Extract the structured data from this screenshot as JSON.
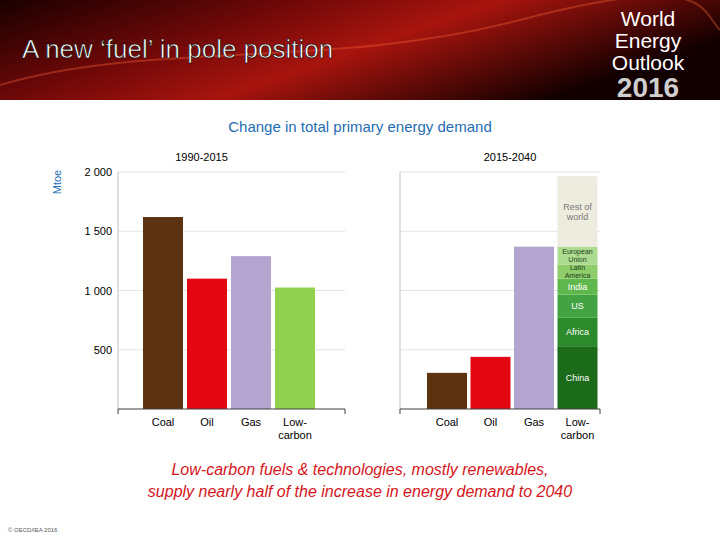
{
  "header": {
    "title": "A new ‘fuel’ in pole position",
    "logo": [
      "World",
      "Energy",
      "Outlook",
      "2016"
    ]
  },
  "heading": "Change in total primary energy demand",
  "chart_data": [
    {
      "type": "bar",
      "title": "1990-2015",
      "y_label": "Mtoe",
      "categories": [
        "Coal",
        "Oil",
        "Gas",
        "Low-carbon"
      ],
      "values": [
        1620,
        1100,
        1290,
        1025
      ],
      "colors": [
        "#5c3311",
        "#e30613",
        "#b3a5cf",
        "#92d050"
      ],
      "ylim": [
        0,
        2000
      ],
      "yticks": [
        500,
        {
          "value": 1000,
          "label": "1 000"
        },
        {
          "value": 1500,
          "label": "1 500"
        },
        {
          "value": 2000,
          "label": "2 000"
        }
      ],
      "grid": true
    },
    {
      "type": "bar",
      "title": "2015-2040",
      "categories": [
        "Coal",
        "Oil",
        "Gas",
        "Low-carbon"
      ],
      "values": [
        305,
        440,
        1370,
        null
      ],
      "colors": [
        "#5c3311",
        "#e30613",
        "#b3a5cf",
        "#92d050"
      ],
      "series": [
        {
          "name": "China",
          "color": "#1b6b1b",
          "values": [
            null,
            null,
            null,
            530
          ]
        },
        {
          "name": "Africa",
          "color": "#2c8a2c",
          "values": [
            null,
            null,
            null,
            240
          ]
        },
        {
          "name": "US",
          "color": "#43a343",
          "values": [
            null,
            null,
            null,
            195
          ]
        },
        {
          "name": "India",
          "color": "#5fb84c",
          "values": [
            null,
            null,
            null,
            135
          ]
        },
        {
          "name": "Latin America",
          "color": "#8fcc6a",
          "values": [
            null,
            null,
            null,
            120
          ]
        },
        {
          "name": "European Union",
          "color": "#addb8f",
          "values": [
            null,
            null,
            null,
            150
          ]
        },
        {
          "name": "Rest of world",
          "color": "#eeebdf",
          "values": [
            null,
            null,
            null,
            595
          ]
        }
      ],
      "stacked": true,
      "ylim": [
        0,
        2000
      ],
      "yticks": [
        500,
        1000,
        1500,
        2000
      ],
      "tick_labels": false,
      "grid": true
    }
  ],
  "footer": {
    "lines": [
      "Low-carbon fuels & technologies, mostly renewables,",
      "supply nearly half of the increase in energy demand to 2040"
    ]
  },
  "copyright": "© OECD/IEA 2016"
}
